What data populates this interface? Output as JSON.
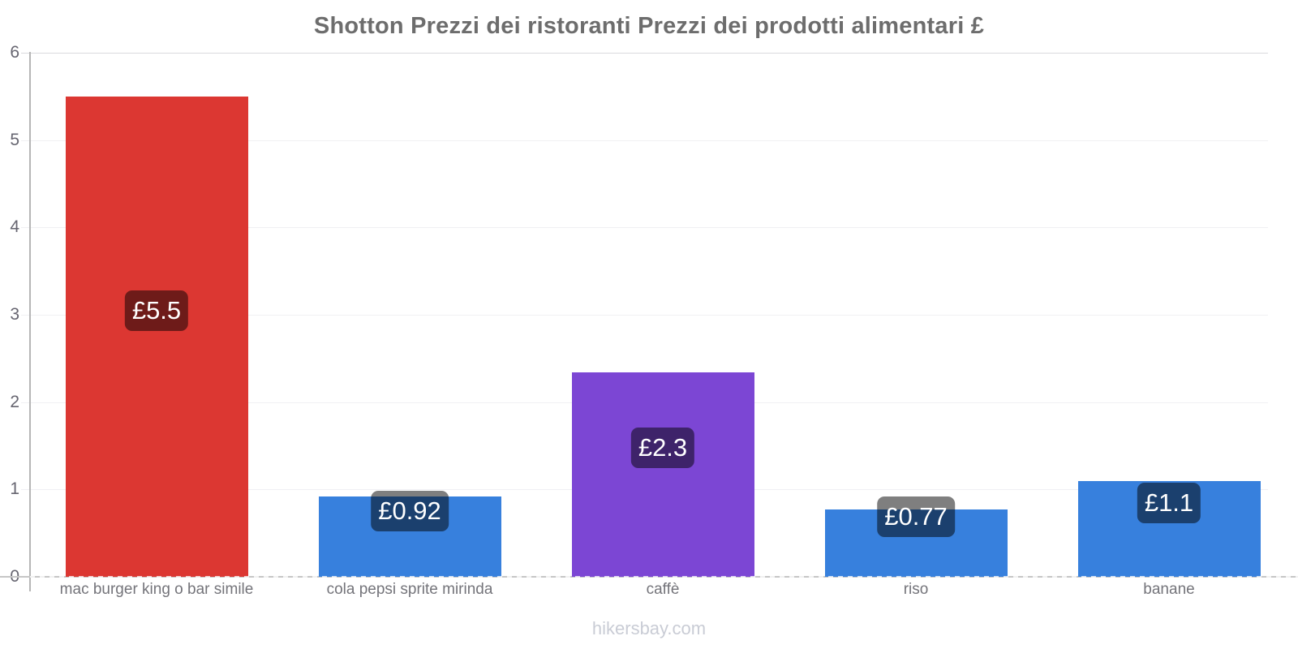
{
  "title": "Shotton Prezzi dei ristoranti Prezzi dei prodotti alimentari £",
  "footer": "hikersbay.com",
  "chart_data": {
    "type": "bar",
    "title": "Shotton Prezzi dei ristoranti Prezzi dei prodotti alimentari £",
    "categories": [
      "mac burger king o bar simile",
      "cola pepsi sprite mirinda",
      "caffè",
      "riso",
      "banane"
    ],
    "values": [
      5.5,
      0.92,
      2.34,
      0.77,
      1.1
    ],
    "data_labels": [
      "£5.5",
      "£0.92",
      "£2.3",
      "£0.77",
      "£1.1"
    ],
    "bar_colors": [
      "#dc3732",
      "#3780dd",
      "#7c46d4",
      "#3780dd",
      "#3780dd"
    ],
    "currency": "£",
    "xlabel": "",
    "ylabel": "",
    "ylim": [
      0,
      6
    ],
    "yticks": [
      0,
      1,
      2,
      3,
      4,
      5,
      6
    ],
    "grid": true,
    "legend_position": "none",
    "badge_overlay_color": "rgba(0,0,0,0.5)",
    "watermark": "hikersbay.com"
  },
  "colors": {
    "title_text": "#6d6d6d",
    "axis_line": "#b6b6b6",
    "baseline": "#c6c6c6",
    "gridline": "#f0f0f3",
    "tick_text": "#666570",
    "category_text": "#74747a",
    "footer_text": "#c9ccd5",
    "badge_text": "#ffffff",
    "background": "#ffffff"
  }
}
